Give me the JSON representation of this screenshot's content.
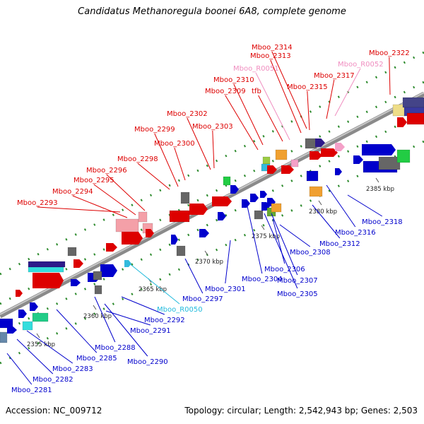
{
  "title": "Candidatus Methanoregula boonei 6A8, complete genome",
  "accession": "Accession: NC_009712",
  "summary": "Topology: circular; Length: 2,542,943 bp; Genes: 2,503",
  "colors": {
    "backbone": "#a8a8a8",
    "label_top": "#dd0000",
    "label_bottom": "#0000cc",
    "label_rna_top": "#f08ec0",
    "label_rna_bottom": "#22bbdd",
    "tick": "#2e8b2e"
  },
  "kbp_labels": [
    "2355 kbp",
    "2360 kbp",
    "2365 kbp",
    "2370 kbp",
    "2375 kbp",
    "2380 kbp",
    "2385 kbp"
  ],
  "top_labels": [
    "Mboo_2293",
    "Mboo_2294",
    "Mboo_2295",
    "Mboo_2296",
    "Mboo_2298",
    "Mboo_2300",
    "Mboo_2299",
    "Mboo_2303",
    "Mboo_2302",
    "Mboo_2309",
    "Mboo_2310",
    "tfb",
    "Mboo_R0051",
    "Mboo_2313",
    "Mboo_2314",
    "Mboo_2315",
    "Mboo_2317",
    "Mboo_R0052",
    "Mboo_2322"
  ],
  "bottom_labels": [
    "Mboo_2281",
    "Mboo_2282",
    "Mboo_2283",
    "Mboo_2285",
    "Mboo_2288",
    "Mboo_2290",
    "Mboo_2291",
    "Mboo_2292",
    "Mboo_R0050",
    "Mboo_2297",
    "Mboo_2301",
    "Mboo_2304",
    "Mboo_2305",
    "Mboo_2306",
    "Mboo_2307",
    "Mboo_2308",
    "Mboo_2312",
    "Mboo_2316",
    "Mboo_2318"
  ]
}
